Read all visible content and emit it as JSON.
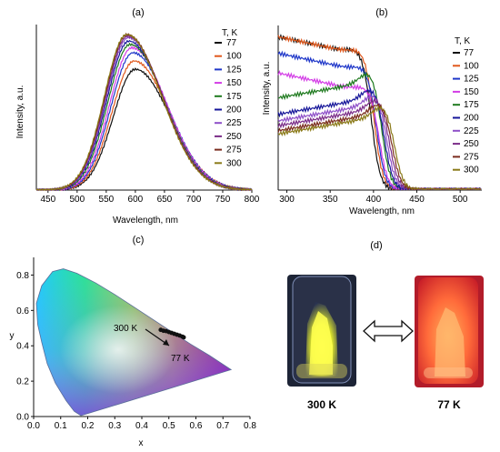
{
  "panels": {
    "a": {
      "label": "(a)"
    },
    "b": {
      "label": "(b)"
    },
    "c": {
      "label": "(c)"
    },
    "d": {
      "label": "(d)",
      "photo_labels": [
        "300 K",
        "77 K"
      ]
    }
  },
  "legend_title": "T, K",
  "legend_colors": [
    "#111111",
    "#e0581c",
    "#1f37c9",
    "#d33ce6",
    "#1e7a1e",
    "#16169a",
    "#8e4fc8",
    "#7a2c88",
    "#7a2c1e",
    "#8a7a18"
  ],
  "chart_data": [
    {
      "type": "line",
      "id": "a",
      "xlabel": "Wavelength, nm",
      "ylabel": "Intensity, a.u.",
      "xlim": [
        430,
        800
      ],
      "xticks": [
        450,
        500,
        550,
        600,
        650,
        700,
        750,
        800
      ],
      "ylim": [
        0,
        1
      ],
      "legend_position": "top-right",
      "grid": false,
      "series": [
        {
          "name": "77",
          "peak": 600,
          "amp": 0.73
        },
        {
          "name": "100",
          "peak": 598,
          "amp": 0.78
        },
        {
          "name": "125",
          "peak": 596,
          "amp": 0.83
        },
        {
          "name": "150",
          "peak": 594,
          "amp": 0.86
        },
        {
          "name": "175",
          "peak": 591,
          "amp": 0.88
        },
        {
          "name": "200",
          "peak": 589,
          "amp": 0.9
        },
        {
          "name": "225",
          "peak": 588,
          "amp": 0.92
        },
        {
          "name": "250",
          "peak": 587,
          "amp": 0.93
        },
        {
          "name": "275",
          "peak": 586,
          "amp": 0.94
        },
        {
          "name": "300",
          "peak": 585,
          "amp": 0.94
        }
      ]
    },
    {
      "type": "line",
      "id": "b",
      "xlabel": "Wavelength, nm",
      "ylabel": "Intensity, a.u.",
      "xlim": [
        290,
        525
      ],
      "xticks": [
        300,
        350,
        400,
        450,
        500
      ],
      "ylim": [
        0,
        1
      ],
      "legend_position": "top-right",
      "grid": false,
      "series": [
        {
          "name": "77",
          "plateau": 0.92,
          "edge": 398
        },
        {
          "name": "100",
          "plateau": 0.92,
          "edge": 401
        },
        {
          "name": "125",
          "plateau": 0.82,
          "edge": 404
        },
        {
          "name": "150",
          "plateau": 0.7,
          "edge": 407
        },
        {
          "name": "175",
          "plateau": 0.57,
          "edge": 410
        },
        {
          "name": "200",
          "plateau": 0.47,
          "edge": 413
        },
        {
          "name": "225",
          "plateau": 0.43,
          "edge": 416
        },
        {
          "name": "250",
          "plateau": 0.4,
          "edge": 419
        },
        {
          "name": "275",
          "plateau": 0.37,
          "edge": 422
        },
        {
          "name": "300",
          "plateau": 0.35,
          "edge": 425
        }
      ]
    },
    {
      "type": "scatter",
      "id": "c",
      "xlabel": "x",
      "ylabel": "y",
      "xlim": [
        0,
        0.8
      ],
      "ylim": [
        0,
        0.9
      ],
      "xticks": [
        0.0,
        0.1,
        0.2,
        0.3,
        0.4,
        0.5,
        0.6,
        0.7,
        0.8
      ],
      "yticks": [
        0.0,
        0.2,
        0.4,
        0.6,
        0.8
      ],
      "annotations": [
        "300 K",
        "77 K"
      ],
      "points": [
        {
          "x": 0.47,
          "y": 0.49
        },
        {
          "x": 0.48,
          "y": 0.485
        },
        {
          "x": 0.49,
          "y": 0.483
        },
        {
          "x": 0.5,
          "y": 0.478
        },
        {
          "x": 0.51,
          "y": 0.473
        },
        {
          "x": 0.52,
          "y": 0.468
        },
        {
          "x": 0.53,
          "y": 0.463
        },
        {
          "x": 0.54,
          "y": 0.458
        },
        {
          "x": 0.55,
          "y": 0.452
        },
        {
          "x": 0.555,
          "y": 0.448
        }
      ]
    }
  ]
}
